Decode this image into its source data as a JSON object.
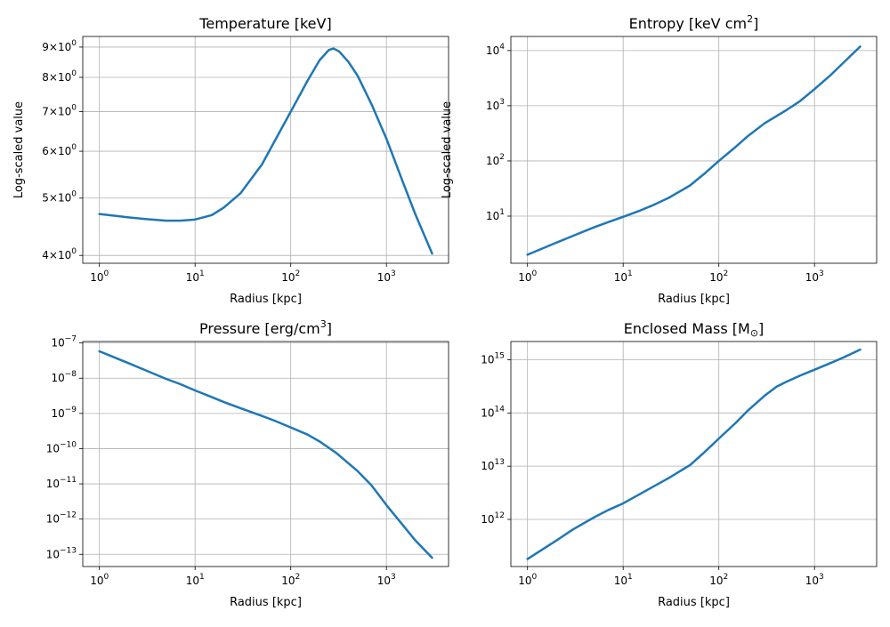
{
  "colors": {
    "line": "#1f77b4",
    "grid": "#b0b0b0",
    "axis": "#000000",
    "background": "#ffffff"
  },
  "chart_data": [
    {
      "id": "temperature",
      "type": "line",
      "title": "Temperature [keV]",
      "xlabel": "Radius [kpc]",
      "ylabel": "Log-scaled value",
      "xscale": "log",
      "yscale": "log",
      "xlim": [
        0.67,
        4460
      ],
      "ylim": [
        3.88,
        9.38
      ],
      "grid": true,
      "x_ticks": [
        {
          "base": "10",
          "exp": "0",
          "value": 1
        },
        {
          "base": "10",
          "exp": "1",
          "value": 10
        },
        {
          "base": "10",
          "exp": "2",
          "value": 100
        },
        {
          "base": "10",
          "exp": "3",
          "value": 1000
        }
      ],
      "y_ticks": [
        {
          "mant": "4×10",
          "exp": "0",
          "value": 4
        },
        {
          "mant": "5×10",
          "exp": "0",
          "value": 5
        },
        {
          "mant": "6×10",
          "exp": "0",
          "value": 6
        },
        {
          "mant": "7×10",
          "exp": "0",
          "value": 7
        },
        {
          "mant": "8×10",
          "exp": "0",
          "value": 8
        },
        {
          "mant": "9×10",
          "exp": "0",
          "value": 9
        }
      ],
      "series": [
        {
          "x": [
            1,
            2,
            3,
            5,
            7,
            10,
            15,
            20,
            30,
            50,
            70,
            100,
            150,
            200,
            250,
            280,
            320,
            400,
            500,
            700,
            1000,
            1500,
            2000,
            3000
          ],
          "y": [
            4.7,
            4.64,
            4.61,
            4.58,
            4.58,
            4.6,
            4.68,
            4.82,
            5.1,
            5.7,
            6.3,
            7.0,
            7.9,
            8.55,
            8.9,
            8.95,
            8.85,
            8.5,
            8.05,
            7.2,
            6.3,
            5.3,
            4.7,
            4.03
          ]
        }
      ]
    },
    {
      "id": "entropy",
      "type": "line",
      "title_main": "Entropy [keV cm",
      "title_sup": "2",
      "title_end": "]",
      "xlabel": "Radius [kpc]",
      "ylabel": "Log-scaled value",
      "xscale": "log",
      "yscale": "log",
      "xlim": [
        0.67,
        4460
      ],
      "ylim": [
        1.4,
        18000
      ],
      "grid": true,
      "x_ticks": [
        {
          "base": "10",
          "exp": "0",
          "value": 1
        },
        {
          "base": "10",
          "exp": "1",
          "value": 10
        },
        {
          "base": "10",
          "exp": "2",
          "value": 100
        },
        {
          "base": "10",
          "exp": "3",
          "value": 1000
        }
      ],
      "y_ticks": [
        {
          "base": "10",
          "exp": "1",
          "value": 10
        },
        {
          "base": "10",
          "exp": "2",
          "value": 100
        },
        {
          "base": "10",
          "exp": "3",
          "value": 1000
        },
        {
          "base": "10",
          "exp": "4",
          "value": 10000
        }
      ],
      "series": [
        {
          "x": [
            1,
            2,
            3,
            5,
            7,
            10,
            15,
            20,
            30,
            50,
            70,
            100,
            150,
            200,
            300,
            500,
            700,
            1000,
            1500,
            2000,
            3000
          ],
          "y": [
            2.0,
            3.3,
            4.4,
            6.3,
            7.8,
            9.7,
            12.6,
            15.5,
            21.5,
            36,
            58,
            100,
            180,
            280,
            480,
            820,
            1200,
            2000,
            3700,
            6000,
            11800
          ]
        }
      ]
    },
    {
      "id": "pressure",
      "type": "line",
      "title_main": "Pressure [erg/cm",
      "title_sup": "3",
      "title_end": "]",
      "xlabel": "Radius [kpc]",
      "ylabel": "",
      "xscale": "log",
      "yscale": "log",
      "xlim": [
        0.67,
        4460
      ],
      "ylim": [
        4.5e-14,
        1.1e-07
      ],
      "grid": true,
      "x_ticks": [
        {
          "base": "10",
          "exp": "0",
          "value": 1
        },
        {
          "base": "10",
          "exp": "1",
          "value": 10
        },
        {
          "base": "10",
          "exp": "2",
          "value": 100
        },
        {
          "base": "10",
          "exp": "3",
          "value": 1000
        }
      ],
      "y_ticks": [
        {
          "base": "10",
          "exp": "−13",
          "value": 1e-13
        },
        {
          "base": "10",
          "exp": "−12",
          "value": 1e-12
        },
        {
          "base": "10",
          "exp": "−11",
          "value": 1e-11
        },
        {
          "base": "10",
          "exp": "−10",
          "value": 1e-10
        },
        {
          "base": "10",
          "exp": "−9",
          "value": 1e-09
        },
        {
          "base": "10",
          "exp": "−8",
          "value": 1e-08
        },
        {
          "base": "10",
          "exp": "−7",
          "value": 1e-07
        }
      ],
      "series": [
        {
          "x": [
            1,
            2,
            3,
            5,
            7,
            10,
            15,
            20,
            30,
            50,
            70,
            100,
            150,
            200,
            300,
            500,
            700,
            1000,
            1500,
            2000,
            3000
          ],
          "y": [
            5.8e-08,
            2.7e-08,
            1.7e-08,
            9.5e-09,
            6.8e-09,
            4.5e-09,
            2.9e-09,
            2.1e-09,
            1.4e-09,
            8.5e-10,
            6e-10,
            4e-10,
            2.5e-10,
            1.6e-10,
            7.5e-11,
            2.3e-11,
            9e-12,
            2.5e-12,
            6.5e-13,
            2.5e-13,
            8e-14
          ]
        }
      ]
    },
    {
      "id": "mass",
      "type": "line",
      "title_main": "Enclosed Mass [M",
      "title_sub": "⊙",
      "title_end": "]",
      "xlabel": "Radius [kpc]",
      "ylabel": "",
      "xscale": "log",
      "yscale": "log",
      "xlim": [
        0.67,
        4460
      ],
      "ylim": [
        130000000000.0,
        2200000000000000.0
      ],
      "grid": true,
      "x_ticks": [
        {
          "base": "10",
          "exp": "0",
          "value": 1
        },
        {
          "base": "10",
          "exp": "1",
          "value": 10
        },
        {
          "base": "10",
          "exp": "2",
          "value": 100
        },
        {
          "base": "10",
          "exp": "3",
          "value": 1000
        }
      ],
      "y_ticks": [
        {
          "base": "10",
          "exp": "12",
          "value": 1000000000000.0
        },
        {
          "base": "10",
          "exp": "13",
          "value": 10000000000000.0
        },
        {
          "base": "10",
          "exp": "14",
          "value": 100000000000000.0
        },
        {
          "base": "10",
          "exp": "15",
          "value": 1000000000000000.0
        }
      ],
      "series": [
        {
          "x": [
            1,
            2,
            3,
            5,
            7,
            10,
            15,
            20,
            30,
            50,
            70,
            100,
            150,
            200,
            300,
            400,
            500,
            700,
            1000,
            1500,
            2000,
            3000
          ],
          "y": [
            180000000000.0,
            400000000000.0,
            650000000000.0,
            1100000000000.0,
            1500000000000.0,
            2000000000000.0,
            3000000000000.0,
            4000000000000.0,
            6000000000000.0,
            10500000000000.0,
            18000000000000.0,
            33000000000000.0,
            65000000000000.0,
            110000000000000.0,
            210000000000000.0,
            310000000000000.0,
            380000000000000.0,
            500000000000000.0,
            650000000000000.0,
            880000000000000.0,
            1100000000000000.0,
            1550000000000000.0
          ]
        }
      ]
    }
  ]
}
